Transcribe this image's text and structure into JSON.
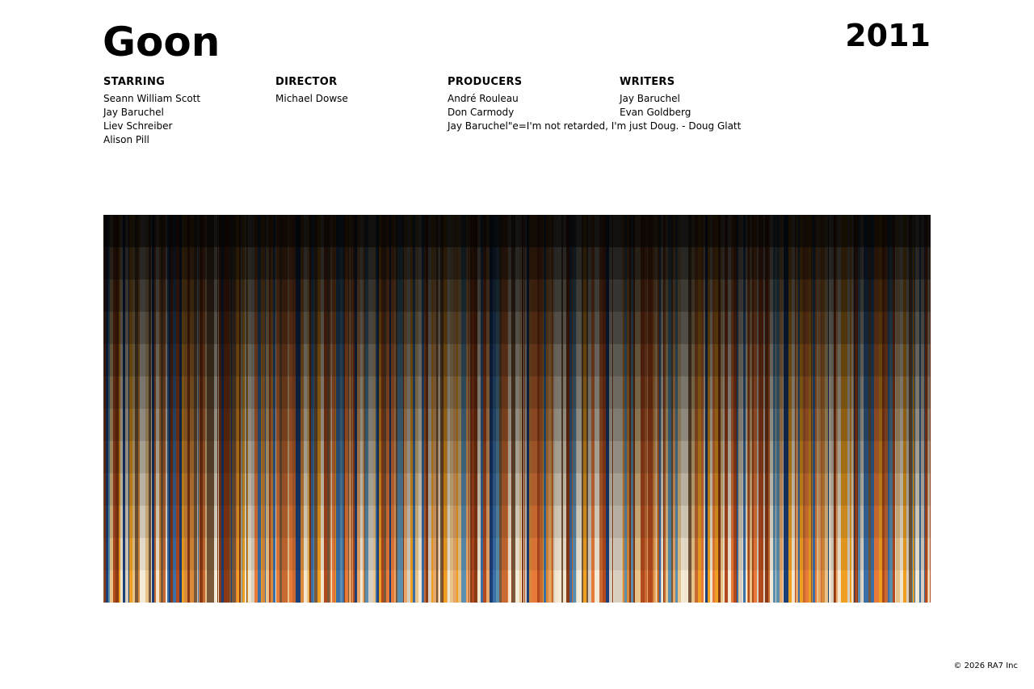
{
  "header": {
    "title": "Goon",
    "year": "2011"
  },
  "crew": [
    {
      "heading": "STARRING",
      "names": [
        "Seann William Scott",
        "Jay Baruchel",
        "Liev Schreiber",
        "Alison Pill"
      ]
    },
    {
      "heading": "DIRECTOR",
      "names": [
        "Michael Dowse"
      ]
    },
    {
      "heading": "PRODUCERS",
      "names": [
        "André Rouleau",
        "Don Carmody",
        "Jay Baruchel\"e=I'm not retarded, I'm just Doug. - Doug Glatt"
      ]
    },
    {
      "heading": "WRITERS",
      "names": [
        "Jay Baruchel",
        "Evan Goldberg"
      ]
    }
  ],
  "footer": "© 2026 RA7 Inc"
}
